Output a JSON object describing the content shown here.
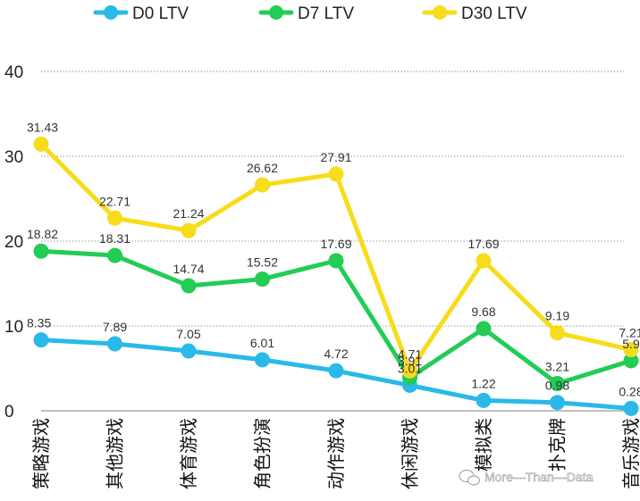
{
  "chart_data": {
    "type": "line",
    "categories": [
      "策略游戏",
      "其他游戏",
      "体育游戏",
      "角色扮演",
      "动作游戏",
      "休闲游戏",
      "模拟类",
      "扑克牌",
      "音乐游戏"
    ],
    "series": [
      {
        "name": "D0 LTV",
        "color": "#2ab9e8",
        "values": [
          8.35,
          7.89,
          7.05,
          6.01,
          4.72,
          3.01,
          1.22,
          0.98,
          0.28
        ]
      },
      {
        "name": "D7 LTV",
        "color": "#22cc55",
        "values": [
          18.82,
          18.31,
          14.74,
          15.52,
          17.69,
          3.91,
          9.68,
          3.21,
          5.9
        ]
      },
      {
        "name": "D30 LTV",
        "color": "#f7dc1b",
        "values": [
          31.43,
          22.71,
          21.24,
          26.62,
          27.91,
          4.71,
          17.69,
          9.19,
          7.21
        ]
      }
    ],
    "yticks": [
      0,
      10,
      20,
      30,
      40
    ],
    "ylim": [
      0,
      40
    ],
    "grid": true,
    "legend": "top"
  },
  "watermark": "More—Than—Data"
}
